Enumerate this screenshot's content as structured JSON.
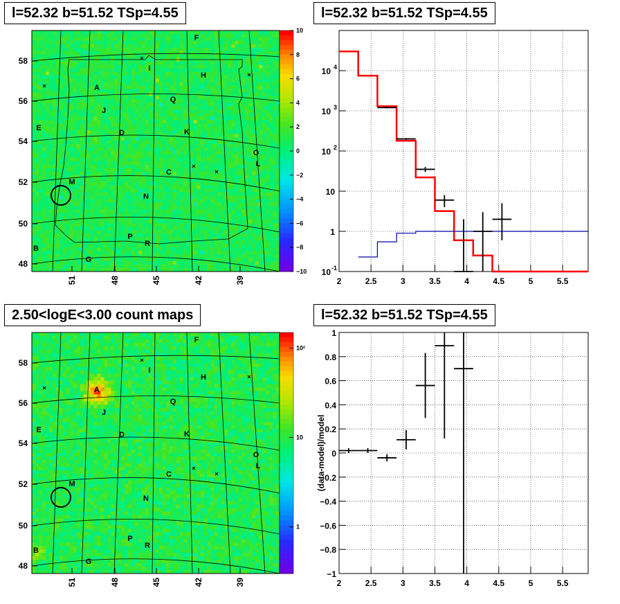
{
  "chart_data": [
    {
      "panel": "tl",
      "type": "heatmap",
      "title": "l=52.32 b=51.52 TSp=4.55",
      "x_ticks": [
        "51",
        "48",
        "45",
        "42",
        "39"
      ],
      "y_ticks": [
        "48",
        "50",
        "52",
        "54",
        "56",
        "58"
      ],
      "colorbar_ticks": [
        "10",
        "8",
        "6",
        "4",
        "2",
        "0",
        "−2",
        "−4",
        "−6",
        "−8",
        "−10"
      ],
      "colorbar_range": [
        -10,
        10
      ],
      "source_letters": [
        "F",
        "I",
        "H",
        "A",
        "Q",
        "J",
        "E",
        "D",
        "K",
        "O",
        "L",
        "C",
        "M",
        "N",
        "P",
        "R",
        "B",
        "G"
      ],
      "description_colors": {
        "base": "#22dd22",
        "accent": "#55cc33"
      }
    },
    {
      "panel": "tr",
      "type": "line",
      "title": "l=52.32 b=51.52 TSp=4.55",
      "xlim": [
        2,
        5.9
      ],
      "ylim_log": [
        0.1,
        100000
      ],
      "y_scale": "log",
      "x_ticks": [
        "2",
        "2.5",
        "3",
        "3.5",
        "4",
        "4.5",
        "5",
        "5.5"
      ],
      "y_tick_values": [
        0.1,
        1,
        10,
        100,
        1000,
        10000
      ],
      "grid": true,
      "series": [
        {
          "color": "#ff0000",
          "step_x": [
            2.0,
            2.3,
            2.6,
            2.9,
            3.2,
            3.5,
            3.8,
            4.1,
            4.4,
            5.9
          ],
          "step_y": [
            30000,
            7500,
            1300,
            180,
            22,
            3.2,
            0.6,
            0.25,
            0.1
          ]
        },
        {
          "color": "#0000aa",
          "step_x": [
            2.3,
            2.6,
            2.9,
            3.2,
            3.5,
            3.8,
            4.1,
            4.4,
            5.9
          ],
          "step_y": [
            0.23,
            0.55,
            0.9,
            1.0,
            1.0,
            1.0,
            1.0,
            1.0
          ]
        },
        {
          "color": "#000000",
          "points": [
            {
              "x": 2.75,
              "xerr": 0.15,
              "y": 1200,
              "ylo": 1150,
              "yhi": 1250
            },
            {
              "x": 3.05,
              "xerr": 0.15,
              "y": 200,
              "ylo": 190,
              "yhi": 210
            },
            {
              "x": 3.35,
              "xerr": 0.15,
              "y": 35,
              "ylo": 30,
              "yhi": 40
            },
            {
              "x": 3.65,
              "xerr": 0.15,
              "y": 6,
              "ylo": 4,
              "yhi": 8
            },
            {
              "x": 3.95,
              "xerr": 0.15,
              "y": 0.1,
              "ylo": 0.1,
              "yhi": 2
            },
            {
              "x": 4.25,
              "xerr": 0.15,
              "y": 1,
              "ylo": 0.1,
              "yhi": 3
            },
            {
              "x": 4.55,
              "xerr": 0.15,
              "y": 2,
              "ylo": 0.6,
              "yhi": 5
            }
          ]
        }
      ]
    },
    {
      "panel": "bl",
      "type": "heatmap",
      "title": "2.50<logE<3.00 count maps",
      "x_ticks": [
        "51",
        "48",
        "45",
        "42",
        "39"
      ],
      "y_ticks": [
        "48",
        "50",
        "52",
        "54",
        "56",
        "58"
      ],
      "colorbar_ticks_log": [
        {
          "label": "10²",
          "v": 100
        },
        {
          "label": "10",
          "v": 10
        },
        {
          "label": "1",
          "v": 1
        }
      ],
      "colorbar_range_log": [
        0.3,
        150
      ],
      "source_letters": [
        "F",
        "I",
        "H",
        "A",
        "Q",
        "J",
        "E",
        "D",
        "K",
        "O",
        "L",
        "C",
        "M",
        "N",
        "P",
        "R",
        "B",
        "G"
      ]
    },
    {
      "panel": "br",
      "type": "scatter",
      "title": "l=52.32 b=51.52 TSp=4.55",
      "ylabel": "(data-model)/model",
      "xlim": [
        2,
        5.9
      ],
      "ylim": [
        -1,
        1
      ],
      "x_ticks": [
        "2",
        "2.5",
        "3",
        "3.5",
        "4",
        "4.5",
        "5",
        "5.5"
      ],
      "y_ticks": [
        "−1",
        "−0.8",
        "−0.6",
        "−0.4",
        "−0.2",
        "0",
        "0.2",
        "0.4",
        "0.6",
        "0.8",
        "1"
      ],
      "grid": true,
      "points": [
        {
          "x": 2.15,
          "xerr": 0.15,
          "y": 0.02,
          "ylo": 0.0,
          "yhi": 0.04
        },
        {
          "x": 2.45,
          "xerr": 0.15,
          "y": 0.02,
          "ylo": 0.0,
          "yhi": 0.04
        },
        {
          "x": 2.75,
          "xerr": 0.15,
          "y": -0.04,
          "ylo": -0.07,
          "yhi": -0.01
        },
        {
          "x": 3.05,
          "xerr": 0.15,
          "y": 0.11,
          "ylo": 0.03,
          "yhi": 0.19
        },
        {
          "x": 3.35,
          "xerr": 0.15,
          "y": 0.56,
          "ylo": 0.29,
          "yhi": 0.83
        },
        {
          "x": 3.65,
          "xerr": 0.15,
          "y": 0.89,
          "ylo": 0.12,
          "yhi": 1.0
        },
        {
          "x": 3.95,
          "xerr": 0.15,
          "y": 0.7,
          "ylo": -1.0,
          "yhi": 1.0
        }
      ]
    }
  ]
}
